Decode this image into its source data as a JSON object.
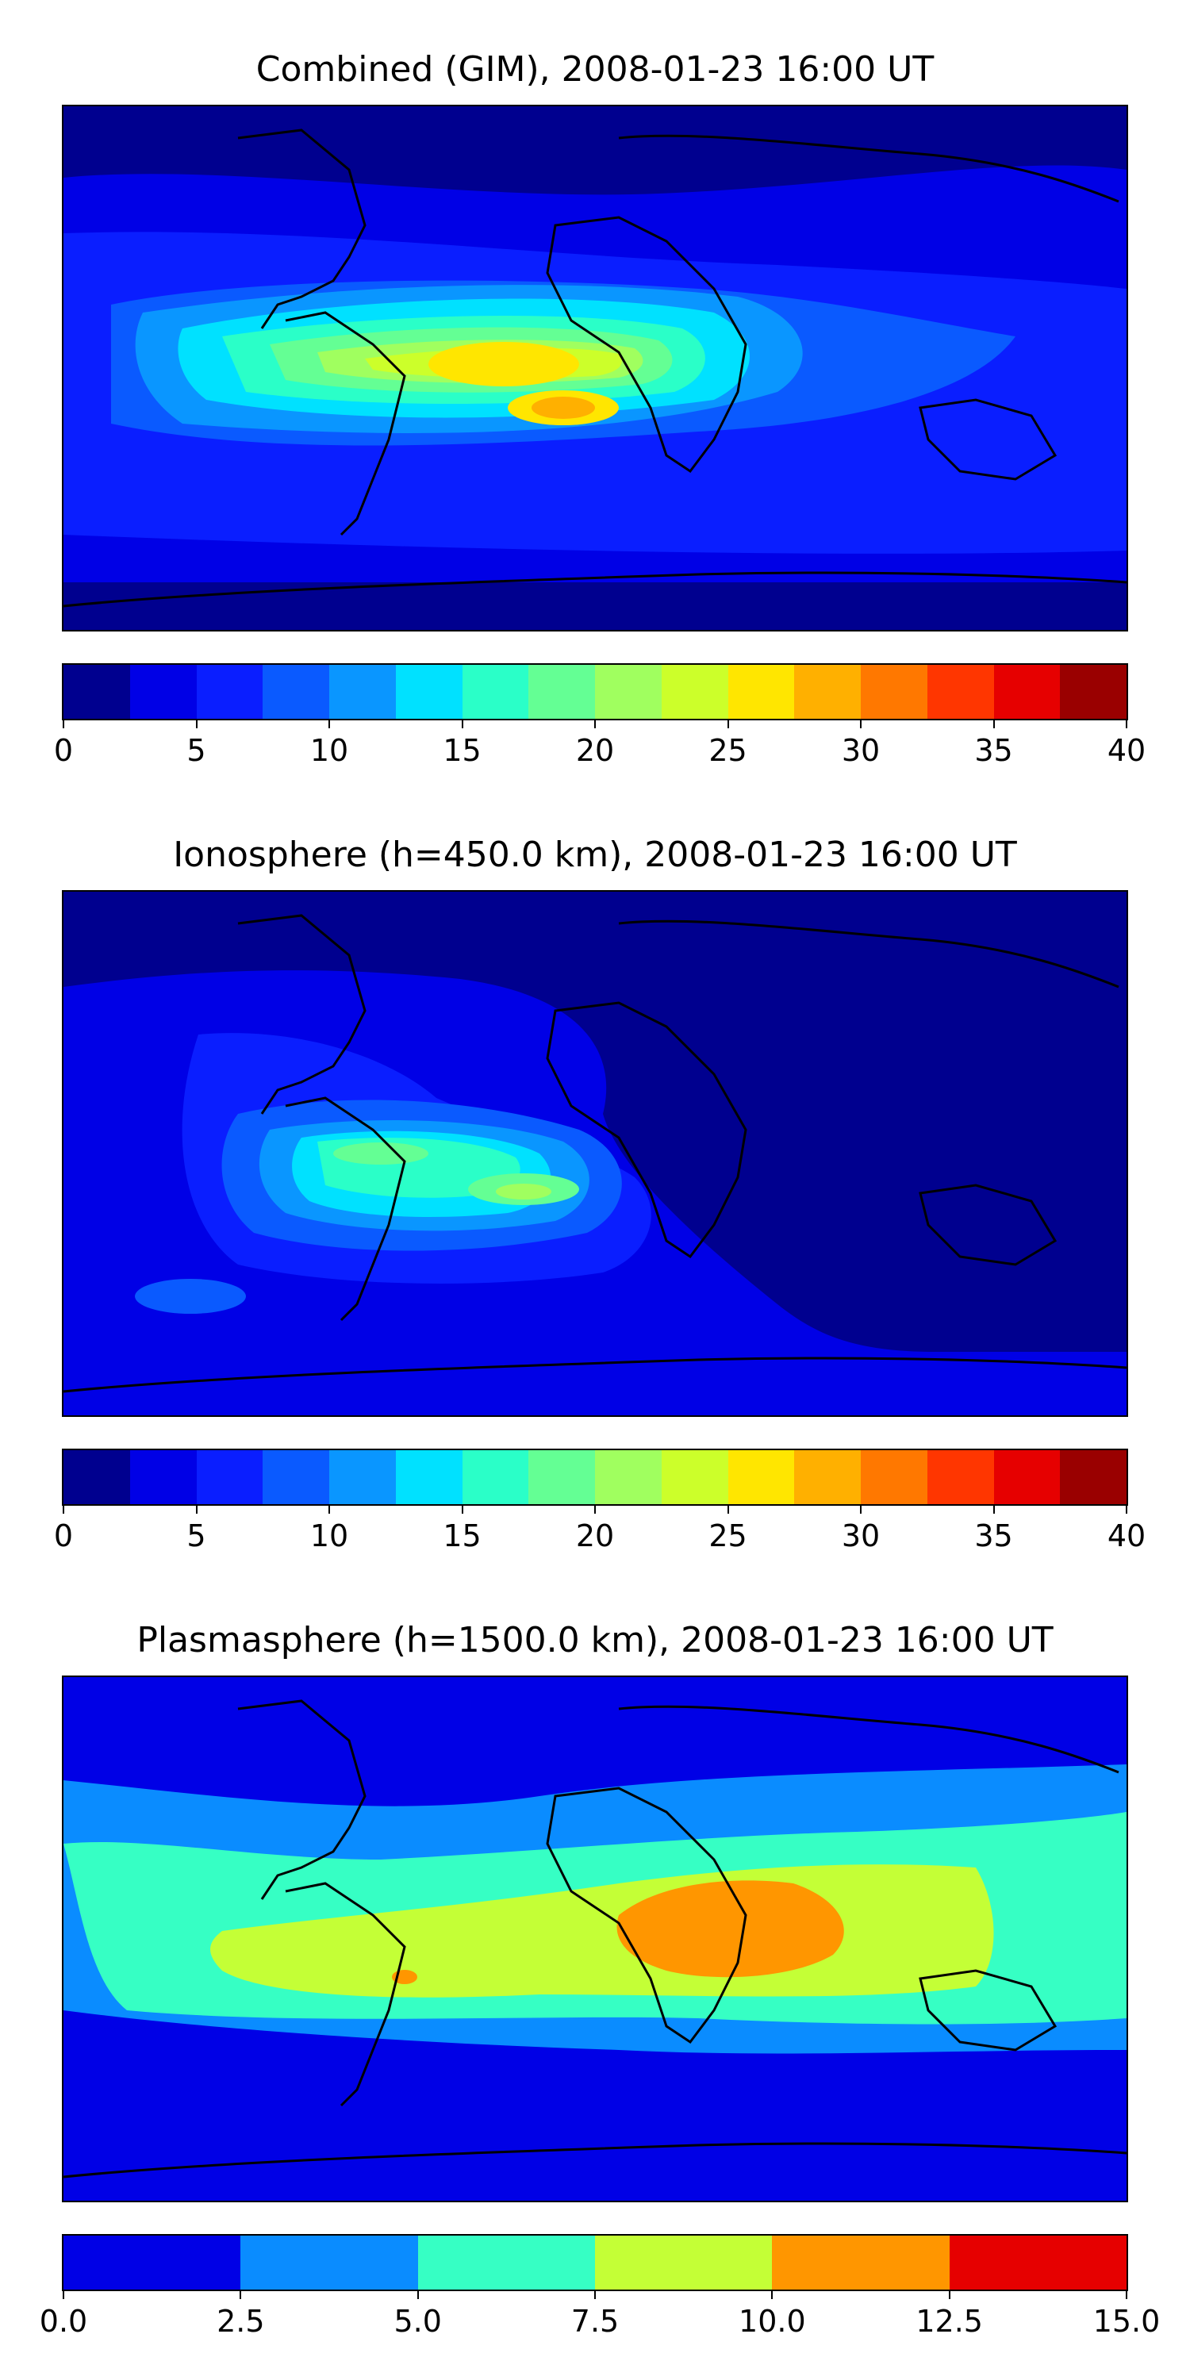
{
  "panels": [
    {
      "title": "Combined (GIM), 2008-01-23 16:00 UT",
      "colorbar": {
        "colors": [
          "#00008f",
          "#0000e6",
          "#0a1eff",
          "#0a5aff",
          "#0a96ff",
          "#00e1ff",
          "#2affc8",
          "#64ff94",
          "#a0ff5f",
          "#ccff2a",
          "#ffe600",
          "#ffb000",
          "#ff7800",
          "#ff3600",
          "#e60000",
          "#9a0000"
        ],
        "tick_labels": [
          "0",
          "5",
          "10",
          "15",
          "20",
          "25",
          "30",
          "35",
          "40"
        ],
        "range": [
          0,
          40
        ]
      }
    },
    {
      "title": "Ionosphere  (h=450.0 km), 2008-01-23 16:00 UT",
      "colorbar": {
        "colors": [
          "#00008f",
          "#0000e6",
          "#0a1eff",
          "#0a5aff",
          "#0a96ff",
          "#00e1ff",
          "#2affc8",
          "#64ff94",
          "#a0ff5f",
          "#ccff2a",
          "#ffe600",
          "#ffb000",
          "#ff7800",
          "#ff3600",
          "#e60000",
          "#9a0000"
        ],
        "tick_labels": [
          "0",
          "5",
          "10",
          "15",
          "20",
          "25",
          "30",
          "35",
          "40"
        ],
        "range": [
          0,
          40
        ]
      }
    },
    {
      "title": "Plasmasphere (h=1500.0 km), 2008-01-23 16:00 UT",
      "colorbar": {
        "colors": [
          "#0000e6",
          "#0a8cff",
          "#36ffc4",
          "#c4ff36",
          "#ff9600",
          "#e60000"
        ],
        "tick_labels": [
          "0.0",
          "2.5",
          "5.0",
          "7.5",
          "10.0",
          "12.5",
          "15.0"
        ],
        "range": [
          0,
          15
        ]
      }
    }
  ]
}
